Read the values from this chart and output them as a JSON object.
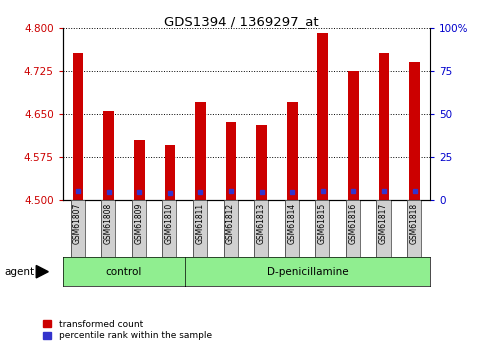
{
  "title": "GDS1394 / 1369297_at",
  "samples": [
    "GSM61807",
    "GSM61808",
    "GSM61809",
    "GSM61810",
    "GSM61811",
    "GSM61812",
    "GSM61813",
    "GSM61814",
    "GSM61815",
    "GSM61816",
    "GSM61817",
    "GSM61818"
  ],
  "bar_tops": [
    4.755,
    4.655,
    4.605,
    4.595,
    4.67,
    4.635,
    4.63,
    4.67,
    4.79,
    4.725,
    4.755,
    4.74
  ],
  "blue_markers": [
    4.516,
    4.514,
    4.514,
    4.513,
    4.514,
    4.515,
    4.514,
    4.514,
    4.515,
    4.516,
    4.515,
    4.515
  ],
  "bar_bottom": 4.5,
  "ylim": [
    4.5,
    4.8
  ],
  "yticks_left": [
    4.5,
    4.575,
    4.65,
    4.725,
    4.8
  ],
  "yticks_right": [
    0,
    25,
    50,
    75,
    100
  ],
  "bar_color": "#cc0000",
  "blue_color": "#3333cc",
  "control_count": 4,
  "treatment_count": 8,
  "control_label": "control",
  "treatment_label": "D-penicillamine",
  "agent_label": "agent",
  "legend_red": "transformed count",
  "legend_blue": "percentile rank within the sample",
  "bg_plot": "#ffffff",
  "bg_xtick": "#d0d0d0",
  "bg_control": "#90ee90",
  "bg_treatment": "#90ee90",
  "tick_color_left": "#cc0000",
  "tick_color_right": "#0000cc",
  "bar_width": 0.35
}
